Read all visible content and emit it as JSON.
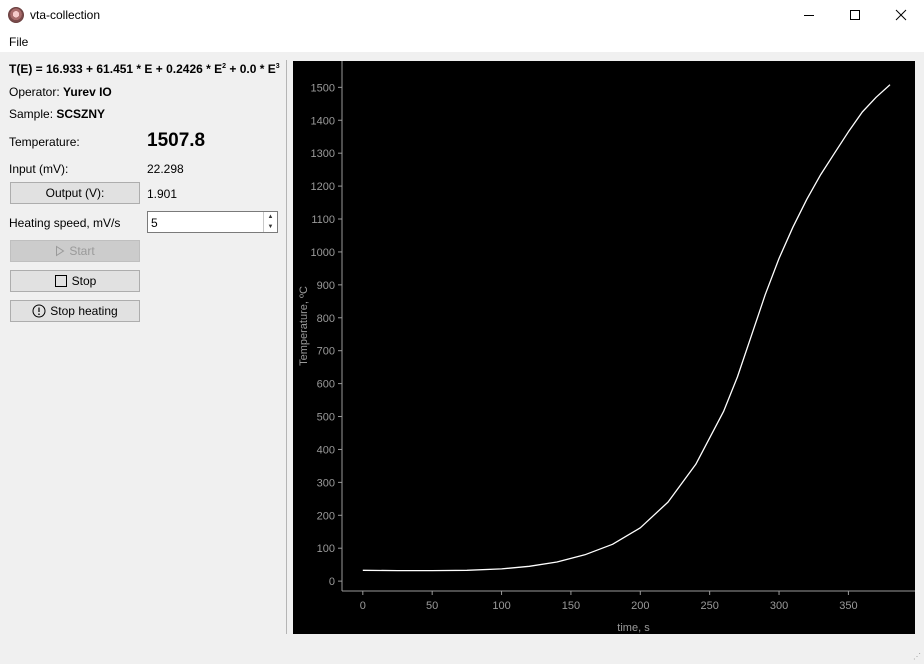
{
  "window": {
    "title": "vta-collection"
  },
  "menu": {
    "file_label": "File"
  },
  "panel": {
    "formula": {
      "prefix": "T(E) = 16.933 + 61.451 * E + 0.2426 * E",
      "sup1": "2",
      "mid": " + 0.0 * E",
      "sup2": "3"
    },
    "operator_label": "Operator:",
    "operator_value": "Yurev IO",
    "sample_label": "Sample:",
    "sample_value": "SCSZNY",
    "temperature_label": "Temperature:",
    "temperature_value": "1507.8",
    "input_label": "Input (mV):",
    "input_value": "22.298",
    "output_button_label": "Output (V):",
    "output_value": "1.901",
    "heating_speed_label": "Heating speed, mV/s",
    "heating_speed_value": "5",
    "start_label": "Start",
    "stop_label": "Stop",
    "stop_heating_label": "Stop heating"
  },
  "chart_data": {
    "type": "line",
    "xlabel": "time, s",
    "ylabel": "Temperature, ºC",
    "xlim": [
      -15,
      398
    ],
    "ylim": [
      -30,
      1580
    ],
    "xticks": [
      0,
      50,
      100,
      150,
      200,
      250,
      300,
      350
    ],
    "yticks": [
      0,
      100,
      200,
      300,
      400,
      500,
      600,
      700,
      800,
      900,
      1000,
      1100,
      1200,
      1300,
      1400,
      1500
    ],
    "background": "#000000",
    "line_color": "#ffffff",
    "axis_color": "#9a9a9a",
    "series": [
      {
        "values": [
          [
            0,
            33
          ],
          [
            25,
            32
          ],
          [
            50,
            32
          ],
          [
            75,
            33
          ],
          [
            100,
            37
          ],
          [
            120,
            45
          ],
          [
            140,
            58
          ],
          [
            160,
            80
          ],
          [
            180,
            112
          ],
          [
            200,
            162
          ],
          [
            220,
            240
          ],
          [
            240,
            355
          ],
          [
            260,
            515
          ],
          [
            270,
            620
          ],
          [
            280,
            745
          ],
          [
            290,
            870
          ],
          [
            300,
            980
          ],
          [
            310,
            1075
          ],
          [
            320,
            1160
          ],
          [
            330,
            1235
          ],
          [
            340,
            1300
          ],
          [
            350,
            1365
          ],
          [
            360,
            1425
          ],
          [
            370,
            1470
          ],
          [
            380,
            1508
          ]
        ]
      }
    ]
  }
}
